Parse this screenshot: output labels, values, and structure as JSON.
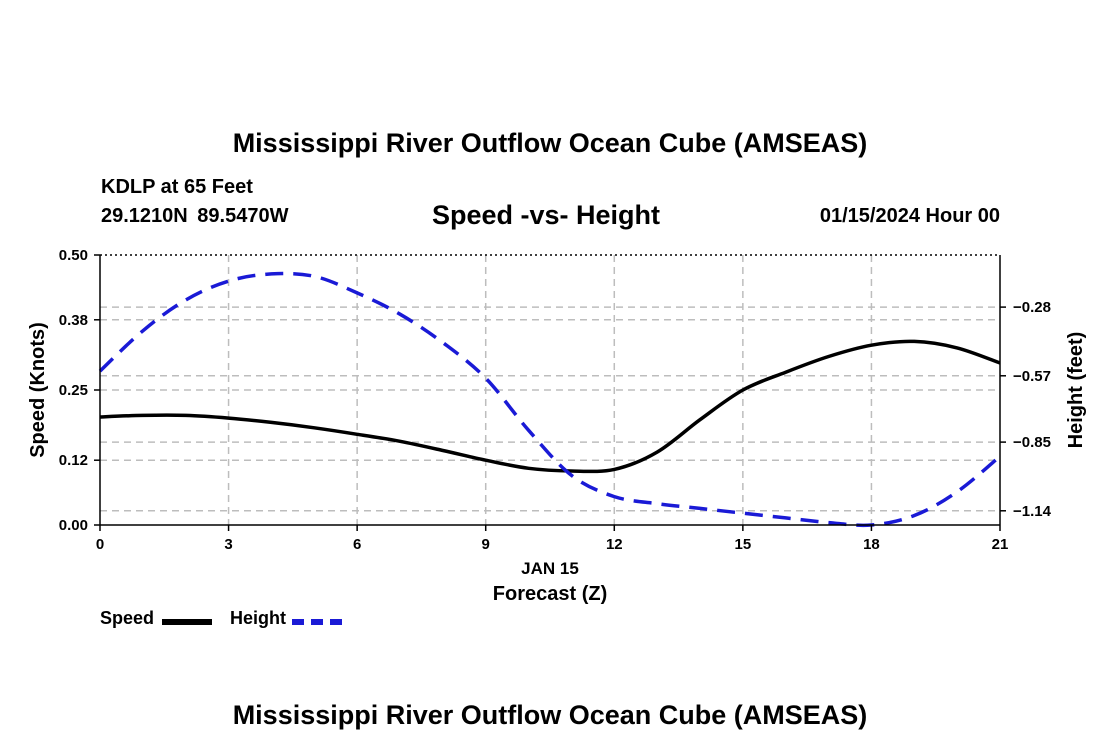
{
  "header": {
    "title": "Mississippi River Outflow Ocean Cube (AMSEAS)",
    "station": "KDLP at 65 Feet",
    "coords": "29.1210N  89.5470W",
    "subtitle": "Speed -vs- Height",
    "date": "01/15/2024 Hour 00"
  },
  "footer": {
    "title": "Mississippi River Outflow Ocean Cube (AMSEAS)"
  },
  "legend": {
    "speed_label": "Speed",
    "height_label": "Height"
  },
  "chart_data": {
    "type": "line",
    "title": "Speed -vs- Height",
    "xlabel": "Forecast (Z)",
    "xsublabel": "JAN 15",
    "ylabel_left": "Speed (Knots)",
    "ylabel_right": "Height (feet)",
    "x_ticks": [
      0,
      3,
      6,
      9,
      12,
      15,
      18,
      21
    ],
    "x_tick_labels": [
      "0",
      "3",
      "6",
      "9",
      "12",
      "15",
      "18",
      "21"
    ],
    "xlim": [
      0,
      21
    ],
    "y_left_ticks": [
      0.0,
      0.12,
      0.25,
      0.38,
      0.5
    ],
    "y_left_tick_labels": [
      "0.00",
      "0.12",
      "0.25",
      "0.38",
      "0.50"
    ],
    "ylim_left": [
      0,
      0.5
    ],
    "y_right_ticks": [
      -0.28,
      -0.57,
      -0.85,
      -1.14
    ],
    "y_right_tick_labels": [
      "−0.28",
      "−0.57",
      "−0.85",
      "−1.14"
    ],
    "ylim_right": [
      -1.2,
      -0.06
    ],
    "grid": true,
    "series": [
      {
        "name": "Speed",
        "axis": "left",
        "color": "#000000",
        "style": "solid",
        "x": [
          0,
          1,
          2,
          3,
          4,
          5,
          6,
          7,
          8,
          9,
          10,
          11,
          12,
          13,
          14,
          15,
          16,
          17,
          18,
          19,
          20,
          21
        ],
        "values": [
          0.2,
          0.203,
          0.203,
          0.198,
          0.19,
          0.18,
          0.168,
          0.155,
          0.138,
          0.12,
          0.105,
          0.1,
          0.103,
          0.135,
          0.195,
          0.25,
          0.283,
          0.312,
          0.333,
          0.34,
          0.328,
          0.3
        ]
      },
      {
        "name": "Height",
        "axis": "right",
        "color": "#1a1ad6",
        "style": "dashed",
        "x": [
          0,
          1,
          2,
          3,
          4,
          5,
          6,
          7,
          8,
          9,
          10,
          11,
          12,
          13,
          14,
          15,
          16,
          17,
          18,
          19,
          20,
          21
        ],
        "values": [
          -0.55,
          -0.38,
          -0.25,
          -0.17,
          -0.14,
          -0.15,
          -0.22,
          -0.31,
          -0.43,
          -0.58,
          -0.8,
          -0.99,
          -1.08,
          -1.11,
          -1.13,
          -1.15,
          -1.17,
          -1.19,
          -1.2,
          -1.16,
          -1.06,
          -0.91
        ]
      }
    ]
  }
}
